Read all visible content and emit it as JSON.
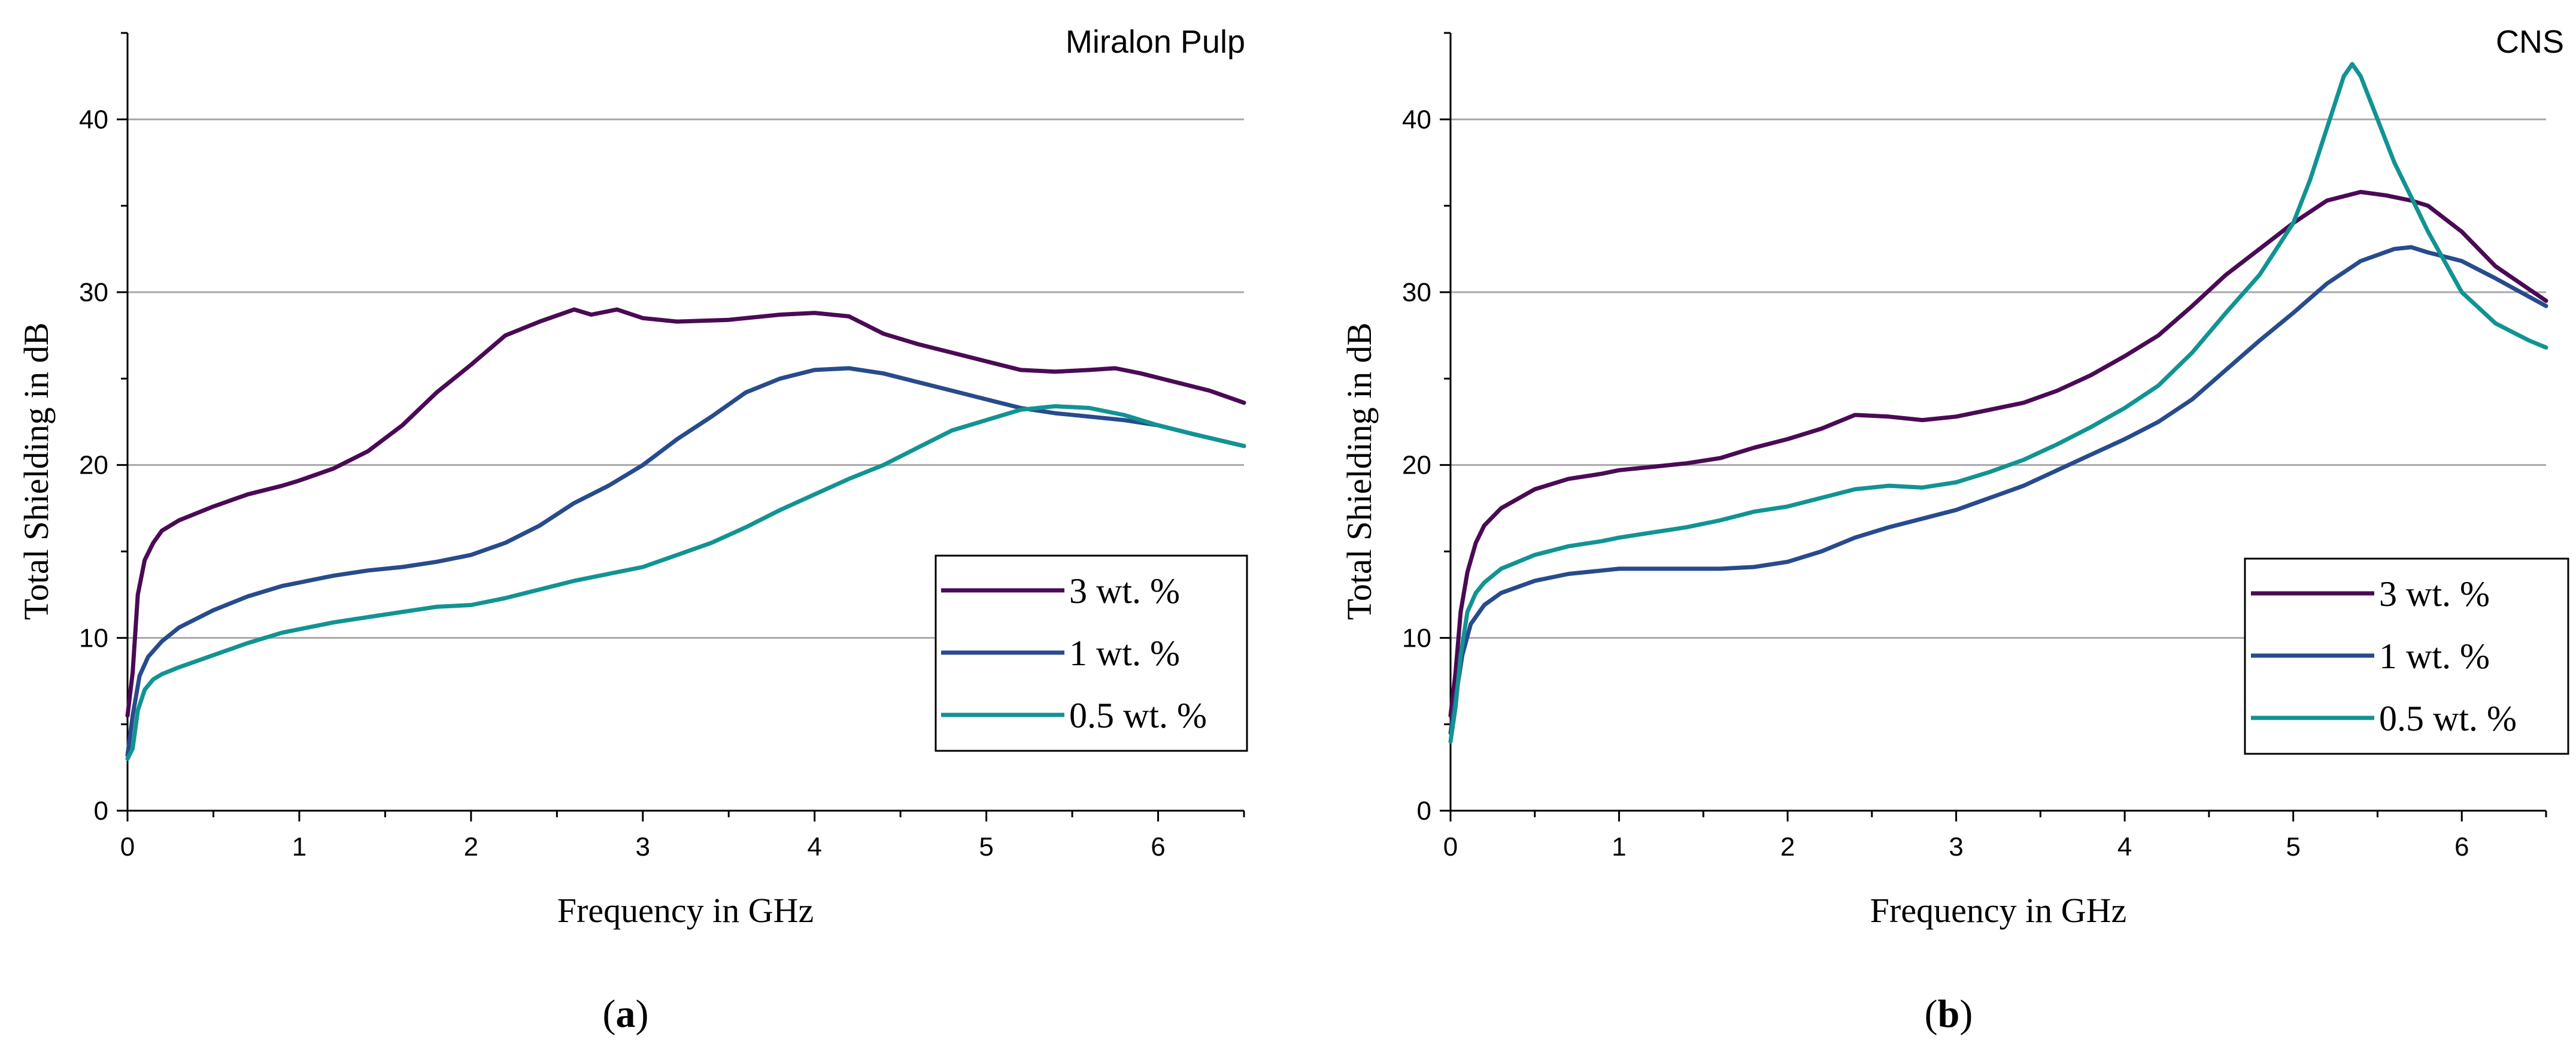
{
  "chart_data": [
    {
      "type": "line",
      "panel": "(a)",
      "caption": {
        "open": "(",
        "letter": "a",
        "close": ")"
      },
      "title": "Miralon Pulp",
      "xlabel": "Frequency in GHz",
      "ylabel": "Total Shielding in dB",
      "xlim": [
        0,
        6.5
      ],
      "ylim": [
        0,
        45
      ],
      "xticks": [
        0,
        1,
        2,
        3,
        4,
        5,
        6
      ],
      "yticks": [
        0,
        10,
        20,
        30,
        40
      ],
      "grid": "horizontal",
      "legend_position": "bottom-right",
      "series": [
        {
          "name": "3 wt. %",
          "color": "#4b0a55",
          "x": [
            0,
            0.03,
            0.06,
            0.1,
            0.15,
            0.2,
            0.3,
            0.5,
            0.7,
            0.9,
            1.0,
            1.2,
            1.4,
            1.6,
            1.8,
            2.0,
            2.2,
            2.4,
            2.6,
            2.7,
            2.85,
            3.0,
            3.2,
            3.5,
            3.8,
            4.0,
            4.2,
            4.4,
            4.6,
            4.8,
            5.0,
            5.2,
            5.4,
            5.6,
            5.75,
            5.9,
            6.1,
            6.3,
            6.5
          ],
          "y": [
            5.5,
            8.0,
            12.5,
            14.5,
            15.5,
            16.2,
            16.8,
            17.6,
            18.3,
            18.8,
            19.1,
            19.8,
            20.8,
            22.3,
            24.2,
            25.8,
            27.5,
            28.3,
            29.0,
            28.7,
            29.0,
            28.5,
            28.3,
            28.4,
            28.7,
            28.8,
            28.6,
            27.6,
            27.0,
            26.5,
            26.0,
            25.5,
            25.4,
            25.5,
            25.6,
            25.3,
            24.8,
            24.3,
            23.6
          ]
        },
        {
          "name": "1 wt. %",
          "color": "#274b8c",
          "x": [
            0,
            0.03,
            0.07,
            0.12,
            0.2,
            0.3,
            0.5,
            0.7,
            0.9,
            1.0,
            1.2,
            1.4,
            1.6,
            1.8,
            2.0,
            2.2,
            2.4,
            2.6,
            2.8,
            3.0,
            3.2,
            3.4,
            3.6,
            3.8,
            4.0,
            4.2,
            4.4,
            4.6,
            4.8,
            5.0,
            5.2,
            5.4,
            5.6,
            5.8,
            6.0,
            6.2,
            6.5
          ],
          "y": [
            3.2,
            5.5,
            7.8,
            8.9,
            9.8,
            10.6,
            11.6,
            12.4,
            13.0,
            13.2,
            13.6,
            13.9,
            14.1,
            14.4,
            14.8,
            15.5,
            16.5,
            17.8,
            18.8,
            20.0,
            21.5,
            22.8,
            24.2,
            25.0,
            25.5,
            25.6,
            25.3,
            24.8,
            24.3,
            23.8,
            23.3,
            23.0,
            22.8,
            22.6,
            22.3,
            21.8,
            21.1
          ]
        },
        {
          "name": "0.5 wt. %",
          "color": "#129393",
          "x": [
            0,
            0.03,
            0.06,
            0.1,
            0.15,
            0.2,
            0.3,
            0.5,
            0.7,
            0.9,
            1.0,
            1.2,
            1.4,
            1.6,
            1.8,
            2.0,
            2.2,
            2.4,
            2.6,
            2.8,
            3.0,
            3.2,
            3.4,
            3.6,
            3.8,
            4.0,
            4.2,
            4.4,
            4.6,
            4.8,
            5.0,
            5.2,
            5.4,
            5.6,
            5.8,
            6.0,
            6.2,
            6.5
          ],
          "y": [
            3.0,
            3.6,
            5.8,
            7.0,
            7.6,
            7.9,
            8.3,
            9.0,
            9.7,
            10.3,
            10.5,
            10.9,
            11.2,
            11.5,
            11.8,
            11.9,
            12.3,
            12.8,
            13.3,
            13.7,
            14.1,
            14.8,
            15.5,
            16.4,
            17.4,
            18.3,
            19.2,
            20.0,
            21.0,
            22.0,
            22.6,
            23.2,
            23.4,
            23.3,
            22.9,
            22.3,
            21.8,
            21.1
          ]
        }
      ]
    },
    {
      "type": "line",
      "panel": "(b)",
      "caption": {
        "open": "(",
        "letter": "b",
        "close": ")"
      },
      "title": "CNS",
      "xlabel": "Frequency in GHz",
      "ylabel": "Total Shielding in dB",
      "xlim": [
        0,
        6.5
      ],
      "ylim": [
        0,
        45
      ],
      "xticks": [
        0,
        1,
        2,
        3,
        4,
        5,
        6
      ],
      "yticks": [
        0,
        10,
        20,
        30,
        40
      ],
      "grid": "horizontal",
      "legend_position": "bottom-right",
      "series": [
        {
          "name": "3 wt. %",
          "color": "#4b0a55",
          "x": [
            0,
            0.03,
            0.06,
            0.1,
            0.15,
            0.2,
            0.3,
            0.5,
            0.7,
            0.9,
            1.0,
            1.2,
            1.4,
            1.6,
            1.8,
            2.0,
            2.2,
            2.4,
            2.6,
            2.8,
            3.0,
            3.2,
            3.4,
            3.6,
            3.8,
            4.0,
            4.2,
            4.4,
            4.6,
            4.8,
            5.0,
            5.2,
            5.4,
            5.55,
            5.7,
            5.8,
            6.0,
            6.2,
            6.5
          ],
          "y": [
            5.5,
            8.0,
            11.5,
            13.8,
            15.5,
            16.5,
            17.5,
            18.6,
            19.2,
            19.5,
            19.7,
            19.9,
            20.1,
            20.4,
            21.0,
            21.5,
            22.1,
            22.9,
            22.8,
            22.6,
            22.8,
            23.2,
            23.6,
            24.3,
            25.2,
            26.3,
            27.5,
            29.2,
            31.0,
            32.5,
            34.0,
            35.3,
            35.8,
            35.6,
            35.3,
            35.0,
            33.5,
            31.5,
            29.5
          ]
        },
        {
          "name": "1 wt. %",
          "color": "#274b8c",
          "x": [
            0,
            0.03,
            0.07,
            0.12,
            0.2,
            0.3,
            0.5,
            0.7,
            0.9,
            1.0,
            1.2,
            1.4,
            1.6,
            1.8,
            2.0,
            2.2,
            2.4,
            2.6,
            2.8,
            3.0,
            3.2,
            3.4,
            3.6,
            3.8,
            4.0,
            4.2,
            4.4,
            4.6,
            4.8,
            5.0,
            5.2,
            5.4,
            5.6,
            5.7,
            5.8,
            6.0,
            6.2,
            6.5
          ],
          "y": [
            4.5,
            6.5,
            9.0,
            10.8,
            11.9,
            12.6,
            13.3,
            13.7,
            13.9,
            14.0,
            14.0,
            14.0,
            14.0,
            14.1,
            14.4,
            15.0,
            15.8,
            16.4,
            16.9,
            17.4,
            18.1,
            18.8,
            19.7,
            20.6,
            21.5,
            22.5,
            23.8,
            25.5,
            27.2,
            28.8,
            30.5,
            31.8,
            32.5,
            32.6,
            32.3,
            31.8,
            30.8,
            29.2
          ]
        },
        {
          "name": "0.5 wt. %",
          "color": "#129393",
          "x": [
            0,
            0.03,
            0.06,
            0.1,
            0.15,
            0.2,
            0.3,
            0.5,
            0.7,
            0.9,
            1.0,
            1.2,
            1.4,
            1.6,
            1.8,
            2.0,
            2.2,
            2.4,
            2.6,
            2.8,
            3.0,
            3.2,
            3.4,
            3.6,
            3.8,
            4.0,
            4.2,
            4.4,
            4.6,
            4.8,
            5.0,
            5.1,
            5.2,
            5.3,
            5.35,
            5.4,
            5.5,
            5.6,
            5.7,
            5.8,
            6.0,
            6.2,
            6.4,
            6.5
          ],
          "y": [
            4.0,
            6.0,
            9.0,
            11.5,
            12.6,
            13.2,
            14.0,
            14.8,
            15.3,
            15.6,
            15.8,
            16.1,
            16.4,
            16.8,
            17.3,
            17.6,
            18.1,
            18.6,
            18.8,
            18.7,
            19.0,
            19.6,
            20.3,
            21.2,
            22.2,
            23.3,
            24.6,
            26.5,
            28.8,
            31.0,
            34.0,
            36.5,
            39.5,
            42.5,
            43.2,
            42.5,
            40.0,
            37.5,
            35.5,
            33.5,
            30.0,
            28.2,
            27.2,
            26.8
          ]
        }
      ]
    }
  ]
}
